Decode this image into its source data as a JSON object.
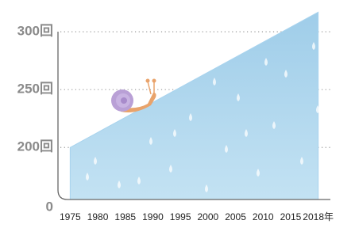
{
  "chart_data": {
    "type": "area",
    "categories": [
      "1975",
      "1980",
      "1985",
      "1990",
      "1995",
      "2000",
      "2005",
      "2010",
      "2015",
      "2018年"
    ],
    "values": [
      200,
      213,
      226,
      239,
      252,
      265,
      278,
      291,
      304,
      317
    ],
    "color": "#a8d3ee",
    "ylim": [
      155,
      322
    ],
    "axis_break": true,
    "yticks": [
      0,
      {
        "value": 200,
        "label": "200回"
      },
      {
        "value": 250,
        "label": "250回"
      },
      {
        "value": 300,
        "label": "300回"
      }
    ],
    "grid": true
  }
}
